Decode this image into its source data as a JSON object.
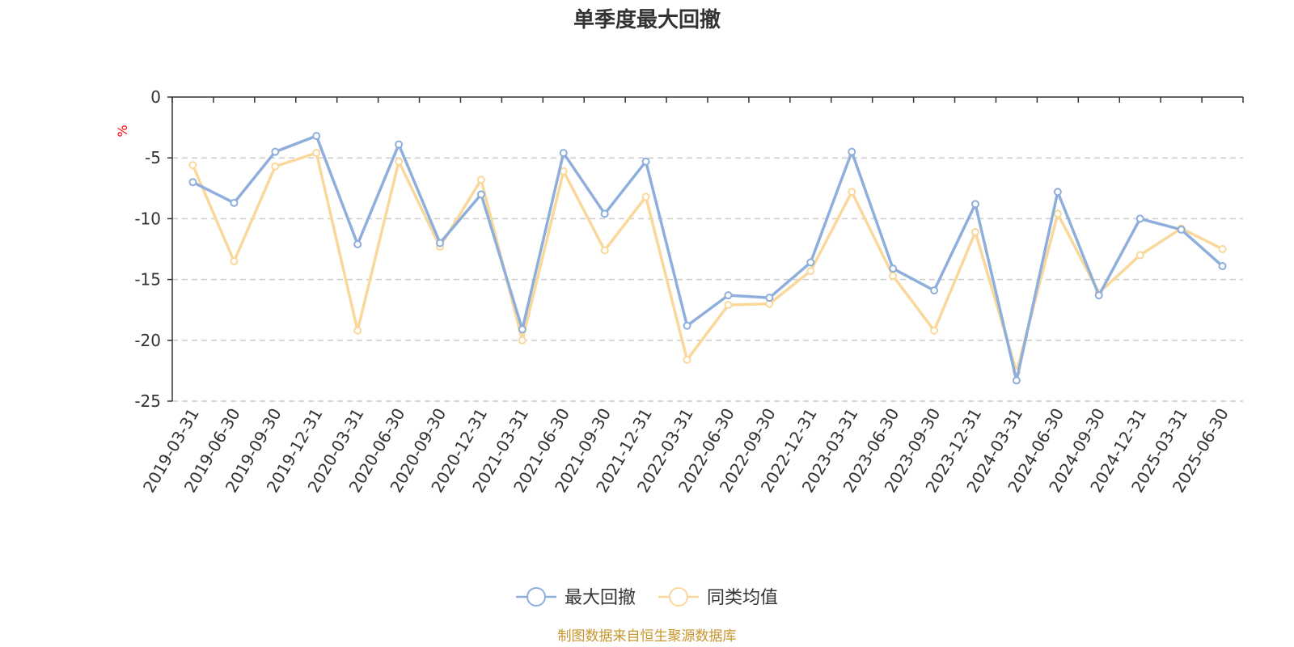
{
  "chart_data": {
    "type": "line",
    "title": "单季度最大回撤",
    "ylabel": "%",
    "ylim": [
      -25,
      0
    ],
    "yticks": [
      0,
      -5,
      -10,
      -15,
      -20,
      -25
    ],
    "grid": true,
    "legend_position": "bottom-center",
    "categories": [
      "2019-03-31",
      "2019-06-30",
      "2019-09-30",
      "2019-12-31",
      "2020-03-31",
      "2020-06-30",
      "2020-09-30",
      "2020-12-31",
      "2021-03-31",
      "2021-06-30",
      "2021-09-30",
      "2021-12-31",
      "2022-03-31",
      "2022-06-30",
      "2022-09-30",
      "2022-12-31",
      "2023-03-31",
      "2023-06-30",
      "2023-09-30",
      "2023-12-31",
      "2024-03-31",
      "2024-06-30",
      "2024-09-30",
      "2024-12-31",
      "2025-03-31",
      "2025-06-30"
    ],
    "series": [
      {
        "name": "最大回撤",
        "color": "#8eaedc",
        "values": [
          -7.0,
          -8.7,
          -4.5,
          -3.2,
          -12.1,
          -3.9,
          -12.0,
          -8.0,
          -19.1,
          -4.6,
          -9.6,
          -5.3,
          -18.8,
          -16.3,
          -16.5,
          -13.6,
          -4.5,
          -14.1,
          -15.9,
          -8.8,
          -23.3,
          -7.8,
          -16.3,
          -10.0,
          -10.9,
          -13.9
        ]
      },
      {
        "name": "同类均值",
        "color": "#fad89c",
        "values": [
          -5.6,
          -13.5,
          -5.7,
          -4.6,
          -19.2,
          -5.3,
          -12.3,
          -6.8,
          -20.0,
          -6.1,
          -12.6,
          -8.2,
          -21.6,
          -17.1,
          -17.0,
          -14.3,
          -7.8,
          -14.7,
          -19.2,
          -11.1,
          -22.6,
          -9.6,
          -16.1,
          -13.0,
          -10.8,
          -12.5
        ]
      }
    ]
  },
  "source": {
    "text": "制图数据来自恒生聚源数据库",
    "color": "#c8952c"
  },
  "ylabel_color": "#ff0000"
}
